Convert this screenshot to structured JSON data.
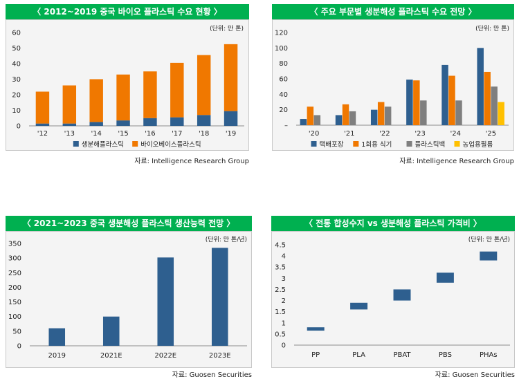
{
  "chart_data": [
    {
      "type": "bar",
      "stacked": true,
      "title": "〈 2012~2019 중국 바이오 플라스틱 수요 현황 〉",
      "unit": "(단위: 만 톤)",
      "source": "자료: Intelligence Research Group",
      "categories": [
        "'12",
        "'13",
        "'14",
        "'15",
        "'16",
        "'17",
        "'18",
        "'19"
      ],
      "series": [
        {
          "name": "생분해플라스틱",
          "color": "#2e5f8f",
          "values": [
            1.5,
            1.5,
            2.5,
            3.5,
            5,
            5.5,
            7,
            9.5
          ]
        },
        {
          "name": "바이오베이스플라스틱",
          "color": "#f07800",
          "values": [
            20.5,
            24.5,
            27.5,
            29.5,
            30,
            35,
            38.5,
            43
          ]
        }
      ],
      "ylim": [
        0,
        60
      ],
      "yticks": [
        "0",
        "10",
        "20",
        "30",
        "40",
        "50",
        "60"
      ],
      "ytick_values": [
        0,
        10,
        20,
        30,
        40,
        50,
        60
      ],
      "legend_position": "bottom"
    },
    {
      "type": "bar",
      "title": "〈 주요 부문별 생분해성 플라스틱 수요 전망 〉",
      "unit": "(단위: 만 톤)",
      "source": "자료: Intelligence Research Group",
      "categories": [
        "'20",
        "'21",
        "'22",
        "'23",
        "'24",
        "'25"
      ],
      "series": [
        {
          "name": "택배포장",
          "color": "#2e5f8f",
          "values": [
            8,
            13,
            20,
            59,
            78,
            100
          ]
        },
        {
          "name": "1회용 식기",
          "color": "#f07800",
          "values": [
            24,
            27,
            30,
            58,
            64,
            69
          ]
        },
        {
          "name": "플라스틱백",
          "color": "#7f7f7f",
          "values": [
            13,
            18,
            24,
            32,
            32,
            50
          ]
        },
        {
          "name": "농업용필름",
          "color": "#ffc000",
          "values": [
            null,
            null,
            null,
            null,
            null,
            30
          ]
        }
      ],
      "ylim": [
        0,
        120
      ],
      "yticks": [
        "–",
        "20",
        "40",
        "60",
        "80",
        "100",
        "120"
      ],
      "ytick_values": [
        0,
        20,
        40,
        60,
        80,
        100,
        120
      ],
      "legend_position": "bottom"
    },
    {
      "type": "bar",
      "title": "〈 2021~2023 중국 생분해성 플라스틱 생산능력 전망 〉",
      "unit": "(단위: 만 톤/년)",
      "source": "자료: Guosen Securities",
      "categories": [
        "2019",
        "2021E",
        "2022E",
        "2023E"
      ],
      "series": [
        {
          "color": "#2e5f8f",
          "values": [
            60,
            100,
            302,
            335
          ]
        }
      ],
      "ylim": [
        0,
        350
      ],
      "yticks": [
        "0",
        "50",
        "100",
        "150",
        "200",
        "250",
        "300",
        "350"
      ],
      "ytick_values": [
        0,
        50,
        100,
        150,
        200,
        250,
        300,
        350
      ]
    },
    {
      "type": "range-bar",
      "title": "〈 전통 합성수지 vs 생분해성 플라스틱 가격비 〉",
      "unit": "(단위: 만 톤/년)",
      "source": "자료: Guosen Securities",
      "categories": [
        "PP",
        "PLA",
        "PBAT",
        "PBS",
        "PHAs"
      ],
      "ranges": [
        [
          0.65,
          0.8
        ],
        [
          1.6,
          1.9
        ],
        [
          2.0,
          2.5
        ],
        [
          2.8,
          3.25
        ],
        [
          3.8,
          4.2
        ]
      ],
      "color": "#2e5f8f",
      "ylim": [
        0,
        4.5
      ],
      "yticks": [
        "0",
        "0.5",
        "1",
        "1.5",
        "2",
        "2.5",
        "3",
        "3.5",
        "4",
        "4.5"
      ],
      "ytick_values": [
        0,
        0.5,
        1,
        1.5,
        2,
        2.5,
        3,
        3.5,
        4,
        4.5
      ]
    }
  ]
}
